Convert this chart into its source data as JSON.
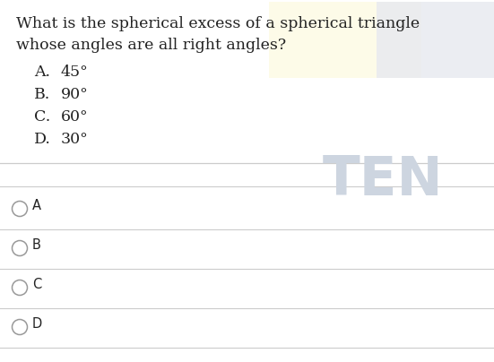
{
  "question_line1": "What is the spherical excess of a spherical triangle",
  "question_line2": "whose angles are all right angles?",
  "options": [
    {
      "label": "A.",
      "text": "45°"
    },
    {
      "label": "B.",
      "text": "90°"
    },
    {
      "label": "C.",
      "text": "60°"
    },
    {
      "label": "D.",
      "text": "30°"
    }
  ],
  "answer_choices": [
    "A",
    "B",
    "C",
    "D"
  ],
  "watermark_text": "TEN",
  "bg_color": "#ffffff",
  "text_color": "#222222",
  "question_fontsize": 12.5,
  "option_label_fontsize": 12.5,
  "answer_fontsize": 10.5,
  "separator_color": "#cccccc",
  "watermark_color": "#cdd5e0",
  "highlight_yellow": "#fdfbe8",
  "highlight_gray": "#e8eaf0",
  "fig_width": 5.51,
  "fig_height": 4.04,
  "dpi": 100
}
